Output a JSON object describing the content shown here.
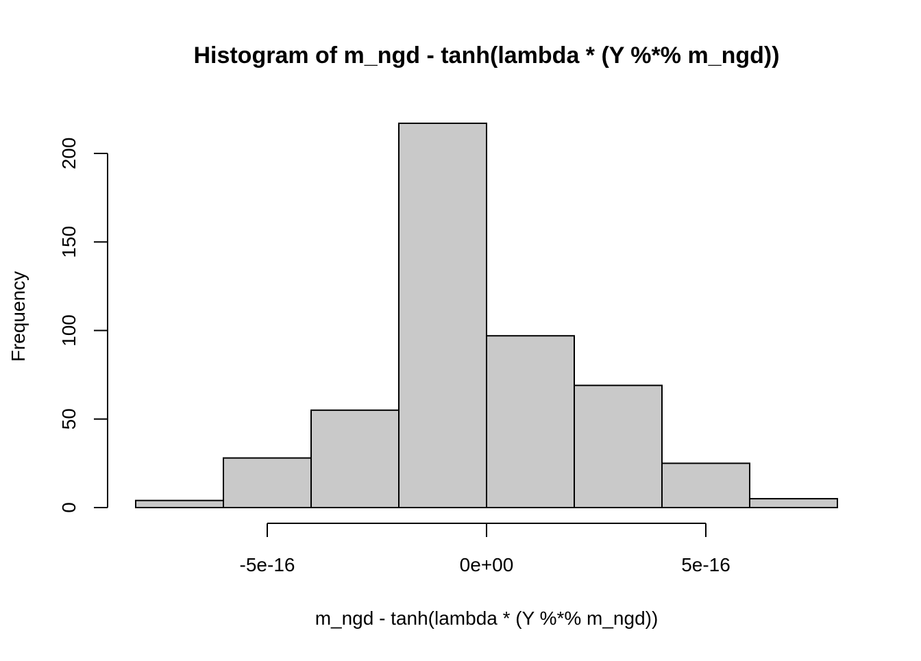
{
  "chart_data": {
    "type": "bar",
    "title": "Histogram of m_ngd - tanh(lambda * (Y %*% m_ngd))",
    "xlabel": "m_ngd - tanh(lambda * (Y %*% m_ngd))",
    "ylabel": "Frequency",
    "bins": [
      {
        "start": -8e-16,
        "end": -6e-16,
        "count": 4
      },
      {
        "start": -6e-16,
        "end": -4e-16,
        "count": 28
      },
      {
        "start": -4e-16,
        "end": -2e-16,
        "count": 55
      },
      {
        "start": -2e-16,
        "end": 0,
        "count": 217
      },
      {
        "start": 0,
        "end": 2e-16,
        "count": 97
      },
      {
        "start": 2e-16,
        "end": 4e-16,
        "count": 69
      },
      {
        "start": 4e-16,
        "end": 6e-16,
        "count": 25
      },
      {
        "start": 6e-16,
        "end": 8e-16,
        "count": 5
      }
    ],
    "xlim": [
      -8e-16,
      8e-16
    ],
    "ylim": [
      0,
      217
    ],
    "x_ticks": [
      {
        "value": -5e-16,
        "label": "-5e-16"
      },
      {
        "value": 0,
        "label": "0e+00"
      },
      {
        "value": 5e-16,
        "label": "5e-16"
      }
    ],
    "y_ticks": [
      {
        "value": 0,
        "label": "0"
      },
      {
        "value": 50,
        "label": "50"
      },
      {
        "value": 100,
        "label": "100"
      },
      {
        "value": 150,
        "label": "150"
      },
      {
        "value": 200,
        "label": "200"
      }
    ],
    "grid": false,
    "colors": {
      "bar_fill": "#c9c9c9",
      "bar_stroke": "#000000",
      "axis": "#000000"
    }
  }
}
